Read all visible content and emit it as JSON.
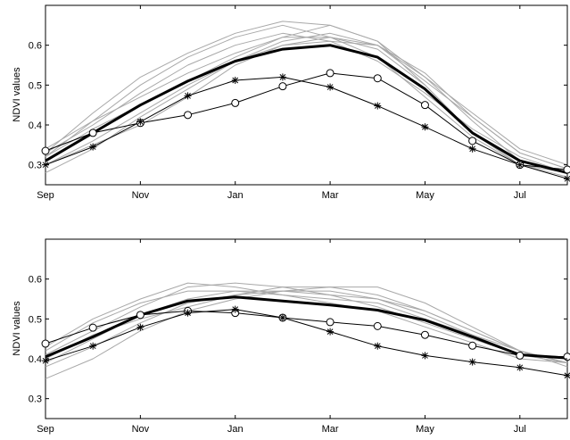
{
  "chart_data": [
    {
      "type": "line",
      "title": "",
      "xlabel": "",
      "ylabel": "NDVI values",
      "x_tick_labels": [
        "Sep",
        "Nov",
        "Jan",
        "Mar",
        "May",
        "Jul"
      ],
      "x": [
        0,
        1,
        2,
        3,
        4,
        5,
        6,
        7,
        8,
        9,
        10,
        11
      ],
      "xlim": [
        0,
        11
      ],
      "ylim": [
        0.25,
        0.7
      ],
      "yticks": [
        0.3,
        0.4,
        0.5,
        0.6
      ],
      "grid": false,
      "series": [
        {
          "style": "thin-gray",
          "color": "#a8a8a8",
          "values": [
            0.3,
            0.36,
            0.43,
            0.5,
            0.56,
            0.6,
            0.61,
            0.6,
            0.53,
            0.42,
            0.33,
            0.29
          ]
        },
        {
          "style": "thin-gray",
          "color": "#a8a8a8",
          "values": [
            0.34,
            0.41,
            0.47,
            0.53,
            0.58,
            0.62,
            0.65,
            0.61,
            0.52,
            0.41,
            0.31,
            0.28
          ]
        },
        {
          "style": "thin-gray",
          "color": "#a8a8a8",
          "values": [
            0.32,
            0.39,
            0.45,
            0.51,
            0.57,
            0.62,
            0.62,
            0.59,
            0.5,
            0.38,
            0.3,
            0.28
          ]
        },
        {
          "style": "thin-gray",
          "color": "#a8a8a8",
          "values": [
            0.28,
            0.34,
            0.42,
            0.49,
            0.56,
            0.61,
            0.63,
            0.6,
            0.51,
            0.42,
            0.33,
            0.29
          ]
        },
        {
          "style": "thin-gray",
          "color": "#a8a8a8",
          "values": [
            0.33,
            0.4,
            0.48,
            0.55,
            0.6,
            0.63,
            0.61,
            0.56,
            0.48,
            0.39,
            0.32,
            0.28
          ]
        },
        {
          "style": "thin-gray",
          "color": "#a8a8a8",
          "values": [
            0.3,
            0.35,
            0.4,
            0.47,
            0.55,
            0.6,
            0.62,
            0.6,
            0.52,
            0.43,
            0.34,
            0.3
          ]
        },
        {
          "style": "thin-gray",
          "color": "#a8a8a8",
          "values": [
            0.33,
            0.43,
            0.52,
            0.58,
            0.63,
            0.66,
            0.65,
            0.61,
            0.5,
            0.38,
            0.31,
            0.28
          ]
        },
        {
          "style": "thin-gray",
          "color": "#a8a8a8",
          "values": [
            0.32,
            0.41,
            0.5,
            0.57,
            0.62,
            0.65,
            0.62,
            0.57,
            0.47,
            0.37,
            0.3,
            0.27
          ]
        },
        {
          "style": "thick-black",
          "color": "#000000",
          "values": [
            0.31,
            0.38,
            0.45,
            0.51,
            0.56,
            0.59,
            0.6,
            0.57,
            0.49,
            0.38,
            0.31,
            0.28
          ]
        },
        {
          "style": "circle-marker",
          "color": "#000000",
          "values": [
            0.335,
            0.38,
            0.405,
            0.425,
            0.455,
            0.497,
            0.53,
            0.517,
            0.45,
            0.36,
            0.3,
            0.288
          ]
        },
        {
          "style": "star-marker",
          "color": "#000000",
          "values": [
            0.3,
            0.345,
            0.408,
            0.473,
            0.512,
            0.52,
            0.495,
            0.448,
            0.395,
            0.34,
            0.3,
            0.265
          ]
        }
      ]
    },
    {
      "type": "line",
      "title": "",
      "xlabel": "",
      "ylabel": "NDVI values",
      "x_tick_labels": [
        "Sep",
        "Nov",
        "Jan",
        "Mar",
        "May",
        "Jul"
      ],
      "x": [
        0,
        1,
        2,
        3,
        4,
        5,
        6,
        7,
        8,
        9,
        10,
        11
      ],
      "xlim": [
        0,
        11
      ],
      "ylim": [
        0.25,
        0.7
      ],
      "yticks": [
        0.3,
        0.4,
        0.5,
        0.6
      ],
      "grid": false,
      "series": [
        {
          "style": "thin-gray",
          "color": "#a8a8a8",
          "values": [
            0.35,
            0.4,
            0.47,
            0.52,
            0.55,
            0.57,
            0.58,
            0.56,
            0.52,
            0.47,
            0.42,
            0.39
          ]
        },
        {
          "style": "thin-gray",
          "color": "#a8a8a8",
          "values": [
            0.38,
            0.43,
            0.49,
            0.54,
            0.56,
            0.57,
            0.57,
            0.55,
            0.51,
            0.46,
            0.41,
            0.39
          ]
        },
        {
          "style": "thin-gray",
          "color": "#a8a8a8",
          "values": [
            0.41,
            0.47,
            0.53,
            0.58,
            0.59,
            0.58,
            0.56,
            0.53,
            0.49,
            0.45,
            0.41,
            0.4
          ]
        },
        {
          "style": "thin-gray",
          "color": "#a8a8a8",
          "values": [
            0.42,
            0.49,
            0.54,
            0.57,
            0.57,
            0.56,
            0.55,
            0.54,
            0.5,
            0.46,
            0.42,
            0.39
          ]
        },
        {
          "style": "thin-gray",
          "color": "#a8a8a8",
          "values": [
            0.43,
            0.5,
            0.55,
            0.59,
            0.58,
            0.56,
            0.54,
            0.52,
            0.48,
            0.44,
            0.4,
            0.39
          ]
        },
        {
          "style": "thin-gray",
          "color": "#a8a8a8",
          "values": [
            0.4,
            0.46,
            0.5,
            0.53,
            0.56,
            0.58,
            0.58,
            0.58,
            0.54,
            0.48,
            0.42,
            0.39
          ]
        },
        {
          "style": "thin-gray",
          "color": "#a8a8a8",
          "values": [
            0.39,
            0.45,
            0.51,
            0.55,
            0.57,
            0.57,
            0.56,
            0.55,
            0.52,
            0.47,
            0.42,
            0.38
          ]
        },
        {
          "style": "thick-black",
          "color": "#000000",
          "values": [
            0.405,
            0.455,
            0.51,
            0.545,
            0.555,
            0.545,
            0.535,
            0.522,
            0.497,
            0.455,
            0.41,
            0.402
          ]
        },
        {
          "style": "circle-marker",
          "color": "#000000",
          "values": [
            0.438,
            0.478,
            0.51,
            0.52,
            0.515,
            0.503,
            0.492,
            0.482,
            0.46,
            0.433,
            0.408,
            0.405
          ]
        },
        {
          "style": "star-marker",
          "color": "#000000",
          "values": [
            0.395,
            0.432,
            0.479,
            0.515,
            0.524,
            0.503,
            0.468,
            0.432,
            0.408,
            0.392,
            0.378,
            0.358
          ]
        }
      ]
    }
  ]
}
